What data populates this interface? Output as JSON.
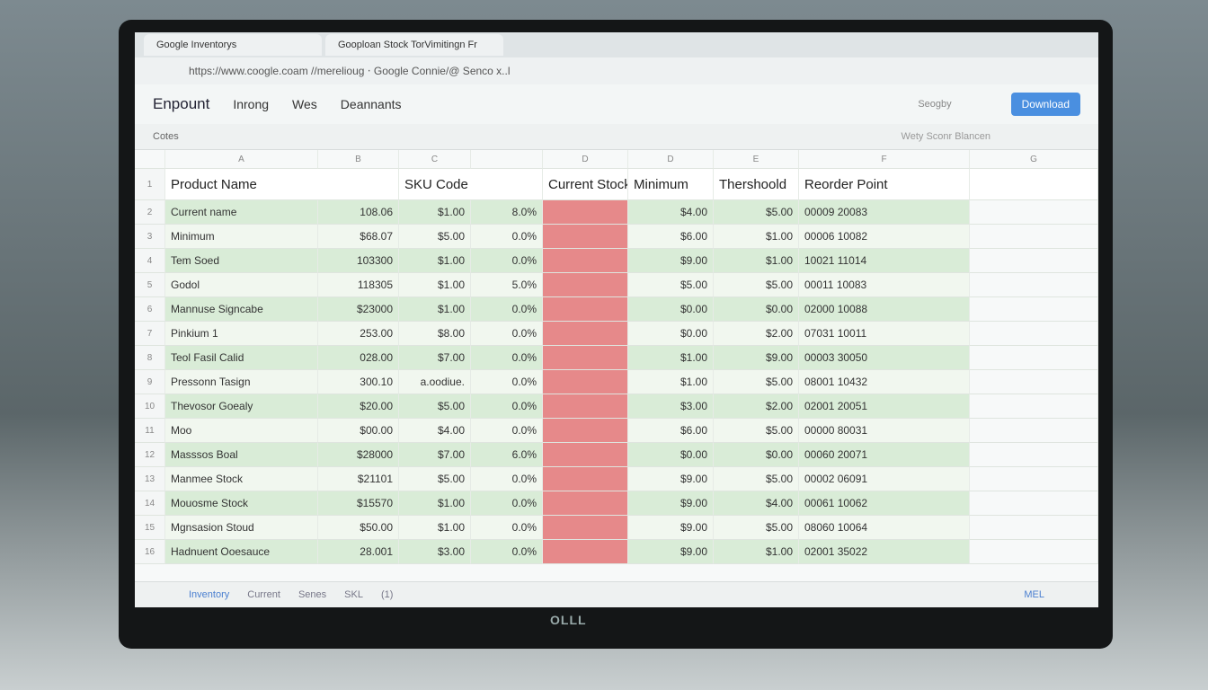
{
  "browser": {
    "tabs": [
      "Google Inventorys",
      "Gooploan Stock TorVimitingn Fr"
    ],
    "url": "https://www.coogle.coam //merelioug ‧ Google Connie/@ Senco x..l"
  },
  "app": {
    "title": "Enpount",
    "menu": [
      "Inrong",
      "Wes",
      "Deannants"
    ],
    "search": "Seogby",
    "download": "Download",
    "filter": "Wety Sconr Blancen",
    "toolbar": "Cotes"
  },
  "sheet": {
    "column_letters": [
      "A",
      "B",
      "C",
      "D",
      "D",
      "E",
      "F",
      "G"
    ],
    "headers": [
      "Product Name",
      "SKU Code",
      "Current Stock",
      "Minimum",
      "Thershoold",
      "Reorder Point"
    ],
    "row_numbers": [
      "1",
      "2",
      "3",
      "4",
      "5",
      "6",
      "7",
      "8",
      "9",
      "10",
      "11",
      "12",
      "13",
      "14",
      "15",
      "16"
    ],
    "rows": [
      [
        "Current name",
        "108.06",
        "$1.00",
        "8.0%",
        "$4.00",
        "$5.00",
        "00009 20083"
      ],
      [
        "Minimum",
        "$68.07",
        "$5.00",
        "0.0%",
        "$6.00",
        "$1.00",
        "00006 10082"
      ],
      [
        "Tem Soed",
        "103300",
        "$1.00",
        "0.0%",
        "$9.00",
        "$1.00",
        "10021 11014"
      ],
      [
        "Godol",
        "118305",
        "$1.00",
        "5.0%",
        "$5.00",
        "$5.00",
        "00011 10083"
      ],
      [
        "Mannuse Signcabe",
        "$23000",
        "$1.00",
        "0.0%",
        "$0.00",
        "$0.00",
        "02000 10088"
      ],
      [
        "Pinkium 1",
        "253.00",
        "$8.00",
        "0.0%",
        "$0.00",
        "$2.00",
        "07031 10011"
      ],
      [
        "Teol Fasil Calid",
        "028.00",
        "$7.00",
        "0.0%",
        "$1.00",
        "$9.00",
        "00003 30050"
      ],
      [
        "Pressonn Tasign",
        "300.10",
        "a.oodiue.",
        "0.0%",
        "$1.00",
        "$5.00",
        "08001 10432"
      ],
      [
        "Thevosor Goealy",
        "$20.00",
        "$5.00",
        "0.0%",
        "$3.00",
        "$2.00",
        "02001 20051"
      ],
      [
        "Moo",
        "$00.00",
        "$4.00",
        "0.0%",
        "$6.00",
        "$5.00",
        "00000 80031"
      ],
      [
        "Masssos Boal",
        "$28000",
        "$7.00",
        "6.0%",
        "$0.00",
        "$0.00",
        "00060 20071"
      ],
      [
        "Manmee Stock",
        "$21101",
        "$5.00",
        "0.0%",
        "$9.00",
        "$5.00",
        "00002 06091"
      ],
      [
        "Mouosme Stock",
        "$15570",
        "$1.00",
        "0.0%",
        "$9.00",
        "$4.00",
        "00061 10062"
      ],
      [
        "Mgnsasion Stoud",
        "$50.00",
        "$1.00",
        "0.0%",
        "$9.00",
        "$5.00",
        "08060 10064"
      ],
      [
        "Hadnuent Ooesauce",
        "28.001",
        "$3.00",
        "0.0%",
        "$9.00",
        "$1.00",
        "02001 35022"
      ]
    ],
    "sheet_tabs": [
      "Inventory",
      "Current",
      "Senes",
      "SKL",
      "(1)"
    ],
    "status": "MEL"
  },
  "monitor": {
    "brand": "OLLL"
  }
}
